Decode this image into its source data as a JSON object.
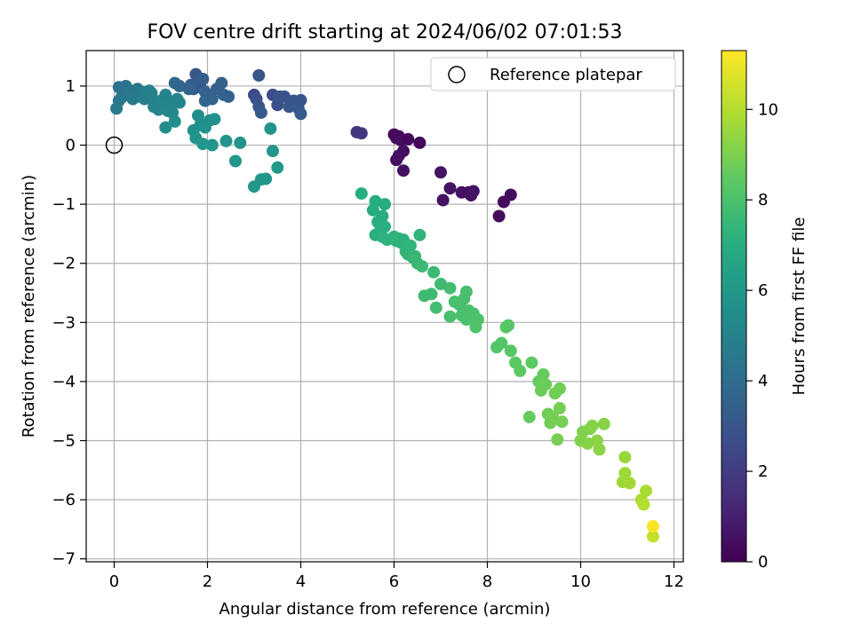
{
  "chart_data": {
    "type": "scatter",
    "title": "FOV centre drift starting at 2024/06/02 07:01:53",
    "xlabel": "Angular distance from reference (arcmin)",
    "ylabel": "Rotation from reference (arcmin)",
    "xlim": [
      -0.6,
      12.2
    ],
    "ylim": [
      -7.05,
      1.6
    ],
    "xticks": [
      "0",
      "2",
      "4",
      "6",
      "8",
      "10",
      "12"
    ],
    "yticks": [
      "1",
      "0",
      "−1",
      "−2",
      "−3",
      "−4",
      "−5",
      "−6",
      "−7"
    ],
    "grid": true,
    "legend": {
      "placement": "top-right",
      "entries": [
        "Reference platepar"
      ]
    },
    "reference_point": {
      "x": 0,
      "y": 0
    },
    "colorbar": {
      "label": "Hours from first FF file",
      "colormap": "viridis",
      "range": [
        0,
        11.3
      ],
      "ticks": [
        "0",
        "2",
        "4",
        "6",
        "8",
        "10"
      ]
    },
    "series": [
      {
        "points": [
          {
            "x": 6.0,
            "y": 0.18,
            "c": 0.2
          },
          {
            "x": 6.05,
            "y": 0.12,
            "c": 0.3
          },
          {
            "x": 6.1,
            "y": 0.15,
            "c": 0.2
          },
          {
            "x": 6.15,
            "y": 0.08,
            "c": 0.4
          },
          {
            "x": 6.3,
            "y": 0.1,
            "c": 0.3
          },
          {
            "x": 6.55,
            "y": 0.04,
            "c": 0.2
          },
          {
            "x": 6.05,
            "y": -0.25,
            "c": 0.4
          },
          {
            "x": 6.1,
            "y": -0.18,
            "c": 0.5
          },
          {
            "x": 6.2,
            "y": -0.1,
            "c": 0.4
          },
          {
            "x": 6.2,
            "y": -0.43,
            "c": 0.5
          },
          {
            "x": 7.0,
            "y": -0.46,
            "c": 0.6
          },
          {
            "x": 7.05,
            "y": -0.93,
            "c": 0.5
          },
          {
            "x": 7.2,
            "y": -0.73,
            "c": 0.6
          },
          {
            "x": 7.45,
            "y": -0.8,
            "c": 0.5
          },
          {
            "x": 7.6,
            "y": -0.8,
            "c": 0.4
          },
          {
            "x": 7.65,
            "y": -0.85,
            "c": 0.5
          },
          {
            "x": 7.7,
            "y": -0.78,
            "c": 0.6
          },
          {
            "x": 8.25,
            "y": -1.2,
            "c": 0.3
          },
          {
            "x": 8.35,
            "y": -0.96,
            "c": 0.4
          },
          {
            "x": 8.5,
            "y": -0.84,
            "c": 0.4
          },
          {
            "x": 5.2,
            "y": 0.22,
            "c": 1.8
          },
          {
            "x": 5.3,
            "y": 0.2,
            "c": 1.8
          },
          {
            "x": 3.0,
            "y": 0.85,
            "c": 2.5
          },
          {
            "x": 3.05,
            "y": 0.78,
            "c": 2.8
          },
          {
            "x": 3.1,
            "y": 0.65,
            "c": 3.0
          },
          {
            "x": 3.15,
            "y": 0.55,
            "c": 3.2
          },
          {
            "x": 3.1,
            "y": 1.18,
            "c": 3.0
          },
          {
            "x": 3.4,
            "y": 0.85,
            "c": 2.6
          },
          {
            "x": 3.5,
            "y": 0.68,
            "c": 2.8
          },
          {
            "x": 3.55,
            "y": 0.82,
            "c": 2.9
          },
          {
            "x": 3.65,
            "y": 0.82,
            "c": 2.9
          },
          {
            "x": 3.75,
            "y": 0.65,
            "c": 3.0
          },
          {
            "x": 3.85,
            "y": 0.75,
            "c": 3.0
          },
          {
            "x": 3.95,
            "y": 0.62,
            "c": 3.1
          },
          {
            "x": 4.0,
            "y": 0.53,
            "c": 3.3
          },
          {
            "x": 4.0,
            "y": 0.76,
            "c": 3.0
          },
          {
            "x": 1.65,
            "y": 1.02,
            "c": 3.2
          },
          {
            "x": 1.7,
            "y": 0.95,
            "c": 3.3
          },
          {
            "x": 1.75,
            "y": 1.2,
            "c": 3.1
          },
          {
            "x": 1.8,
            "y": 1.05,
            "c": 3.3
          },
          {
            "x": 1.85,
            "y": 0.98,
            "c": 3.2
          },
          {
            "x": 1.9,
            "y": 1.12,
            "c": 3.4
          },
          {
            "x": 1.95,
            "y": 0.9,
            "c": 3.5
          },
          {
            "x": 2.0,
            "y": 0.85,
            "c": 3.5
          },
          {
            "x": 2.1,
            "y": 0.78,
            "c": 3.6
          },
          {
            "x": 2.2,
            "y": 0.95,
            "c": 3.4
          },
          {
            "x": 2.3,
            "y": 1.05,
            "c": 3.5
          },
          {
            "x": 2.35,
            "y": 0.85,
            "c": 3.6
          },
          {
            "x": 2.45,
            "y": 0.82,
            "c": 3.5
          },
          {
            "x": 1.95,
            "y": 0.75,
            "c": 3.7
          },
          {
            "x": 1.4,
            "y": 1.0,
            "c": 3.8
          },
          {
            "x": 1.3,
            "y": 1.05,
            "c": 3.7
          },
          {
            "x": 1.6,
            "y": 0.95,
            "c": 3.6
          },
          {
            "x": 0.1,
            "y": 0.98,
            "c": 4.2
          },
          {
            "x": 0.15,
            "y": 0.8,
            "c": 4.3
          },
          {
            "x": 0.2,
            "y": 0.95,
            "c": 4.4
          },
          {
            "x": 0.25,
            "y": 1.0,
            "c": 4.3
          },
          {
            "x": 0.3,
            "y": 0.85,
            "c": 4.5
          },
          {
            "x": 0.35,
            "y": 0.92,
            "c": 4.5
          },
          {
            "x": 0.4,
            "y": 0.78,
            "c": 4.6
          },
          {
            "x": 0.45,
            "y": 0.88,
            "c": 4.6
          },
          {
            "x": 0.5,
            "y": 0.95,
            "c": 4.4
          },
          {
            "x": 0.55,
            "y": 0.82,
            "c": 4.7
          },
          {
            "x": 0.6,
            "y": 0.9,
            "c": 4.6
          },
          {
            "x": 0.65,
            "y": 0.78,
            "c": 4.8
          },
          {
            "x": 0.7,
            "y": 0.85,
            "c": 4.7
          },
          {
            "x": 0.75,
            "y": 0.92,
            "c": 4.8
          },
          {
            "x": 0.8,
            "y": 0.88,
            "c": 4.9
          },
          {
            "x": 0.85,
            "y": 0.65,
            "c": 5.0
          },
          {
            "x": 0.9,
            "y": 0.72,
            "c": 4.9
          },
          {
            "x": 0.95,
            "y": 0.6,
            "c": 5.1
          },
          {
            "x": 1.0,
            "y": 0.75,
            "c": 5.0
          },
          {
            "x": 1.05,
            "y": 0.65,
            "c": 5.1
          },
          {
            "x": 1.1,
            "y": 0.85,
            "c": 5.0
          },
          {
            "x": 1.15,
            "y": 0.58,
            "c": 5.2
          },
          {
            "x": 1.2,
            "y": 0.72,
            "c": 5.1
          },
          {
            "x": 1.25,
            "y": 0.55,
            "c": 5.3
          },
          {
            "x": 1.35,
            "y": 0.78,
            "c": 5.0
          },
          {
            "x": 1.4,
            "y": 0.72,
            "c": 5.1
          },
          {
            "x": 0.05,
            "y": 0.62,
            "c": 4.6
          },
          {
            "x": 0.1,
            "y": 0.75,
            "c": 4.5
          },
          {
            "x": 1.1,
            "y": 0.3,
            "c": 5.4
          },
          {
            "x": 1.3,
            "y": 0.4,
            "c": 5.5
          },
          {
            "x": 1.7,
            "y": 0.25,
            "c": 5.6
          },
          {
            "x": 1.75,
            "y": 0.12,
            "c": 5.8
          },
          {
            "x": 1.8,
            "y": 0.5,
            "c": 5.5
          },
          {
            "x": 1.85,
            "y": 0.35,
            "c": 5.6
          },
          {
            "x": 1.9,
            "y": 0.02,
            "c": 5.9
          },
          {
            "x": 1.95,
            "y": 0.3,
            "c": 5.7
          },
          {
            "x": 2.05,
            "y": 0.42,
            "c": 5.6
          },
          {
            "x": 2.1,
            "y": 0.0,
            "c": 5.9
          },
          {
            "x": 2.15,
            "y": 0.44,
            "c": 5.7
          },
          {
            "x": 2.4,
            "y": 0.07,
            "c": 5.8
          },
          {
            "x": 2.6,
            "y": -0.27,
            "c": 5.9
          },
          {
            "x": 2.7,
            "y": 0.04,
            "c": 5.8
          },
          {
            "x": 3.0,
            "y": -0.7,
            "c": 6.0
          },
          {
            "x": 3.15,
            "y": -0.58,
            "c": 5.9
          },
          {
            "x": 3.25,
            "y": -0.57,
            "c": 5.9
          },
          {
            "x": 3.35,
            "y": 0.28,
            "c": 5.8
          },
          {
            "x": 3.4,
            "y": -0.1,
            "c": 5.9
          },
          {
            "x": 3.5,
            "y": -0.38,
            "c": 6.0
          },
          {
            "x": 5.3,
            "y": -0.82,
            "c": 7.0
          },
          {
            "x": 5.55,
            "y": -1.1,
            "c": 6.9
          },
          {
            "x": 5.6,
            "y": -0.95,
            "c": 7.0
          },
          {
            "x": 5.6,
            "y": -1.52,
            "c": 7.1
          },
          {
            "x": 5.65,
            "y": -1.3,
            "c": 7.0
          },
          {
            "x": 5.7,
            "y": -1.45,
            "c": 7.1
          },
          {
            "x": 5.75,
            "y": -1.2,
            "c": 6.9
          },
          {
            "x": 5.75,
            "y": -1.55,
            "c": 7.2
          },
          {
            "x": 5.8,
            "y": -1.0,
            "c": 6.9
          },
          {
            "x": 5.8,
            "y": -1.38,
            "c": 7.1
          },
          {
            "x": 5.85,
            "y": -1.6,
            "c": 7.2
          },
          {
            "x": 6.0,
            "y": -1.55,
            "c": 7.2
          },
          {
            "x": 6.05,
            "y": -1.62,
            "c": 7.3
          },
          {
            "x": 6.1,
            "y": -1.58,
            "c": 7.3
          },
          {
            "x": 6.15,
            "y": -1.65,
            "c": 7.3
          },
          {
            "x": 6.2,
            "y": -1.6,
            "c": 7.2
          },
          {
            "x": 6.25,
            "y": -1.8,
            "c": 7.4
          },
          {
            "x": 6.3,
            "y": -1.85,
            "c": 7.4
          },
          {
            "x": 6.35,
            "y": -1.7,
            "c": 7.3
          },
          {
            "x": 6.4,
            "y": -1.9,
            "c": 7.5
          },
          {
            "x": 6.45,
            "y": -1.88,
            "c": 7.5
          },
          {
            "x": 6.5,
            "y": -2.0,
            "c": 7.5
          },
          {
            "x": 6.55,
            "y": -1.52,
            "c": 7.3
          },
          {
            "x": 6.6,
            "y": -2.05,
            "c": 7.6
          },
          {
            "x": 6.65,
            "y": -2.55,
            "c": 7.7
          },
          {
            "x": 6.8,
            "y": -2.52,
            "c": 7.7
          },
          {
            "x": 6.85,
            "y": -2.15,
            "c": 7.6
          },
          {
            "x": 6.9,
            "y": -2.75,
            "c": 7.8
          },
          {
            "x": 7.0,
            "y": -2.35,
            "c": 7.7
          },
          {
            "x": 7.2,
            "y": -2.42,
            "c": 7.8
          },
          {
            "x": 7.2,
            "y": -2.9,
            "c": 7.9
          },
          {
            "x": 7.3,
            "y": -2.65,
            "c": 7.9
          },
          {
            "x": 7.4,
            "y": -2.7,
            "c": 7.9
          },
          {
            "x": 7.45,
            "y": -2.88,
            "c": 8.0
          },
          {
            "x": 7.5,
            "y": -2.6,
            "c": 7.9
          },
          {
            "x": 7.55,
            "y": -2.95,
            "c": 8.0
          },
          {
            "x": 7.55,
            "y": -2.48,
            "c": 7.9
          },
          {
            "x": 7.6,
            "y": -2.8,
            "c": 8.0
          },
          {
            "x": 7.65,
            "y": -2.92,
            "c": 8.0
          },
          {
            "x": 7.7,
            "y": -2.85,
            "c": 8.0
          },
          {
            "x": 7.75,
            "y": -3.08,
            "c": 8.1
          },
          {
            "x": 7.8,
            "y": -2.95,
            "c": 8.1
          },
          {
            "x": 8.2,
            "y": -3.42,
            "c": 8.2
          },
          {
            "x": 8.3,
            "y": -3.35,
            "c": 8.2
          },
          {
            "x": 8.4,
            "y": -3.08,
            "c": 8.3
          },
          {
            "x": 8.45,
            "y": -3.05,
            "c": 8.3
          },
          {
            "x": 8.5,
            "y": -3.48,
            "c": 8.3
          },
          {
            "x": 8.6,
            "y": -3.68,
            "c": 8.4
          },
          {
            "x": 8.7,
            "y": -3.82,
            "c": 8.4
          },
          {
            "x": 8.9,
            "y": -4.6,
            "c": 8.6
          },
          {
            "x": 8.95,
            "y": -3.68,
            "c": 8.5
          },
          {
            "x": 9.1,
            "y": -4.0,
            "c": 8.6
          },
          {
            "x": 9.15,
            "y": -4.15,
            "c": 8.7
          },
          {
            "x": 9.2,
            "y": -3.88,
            "c": 8.6
          },
          {
            "x": 9.25,
            "y": -4.05,
            "c": 8.7
          },
          {
            "x": 9.3,
            "y": -4.55,
            "c": 8.8
          },
          {
            "x": 9.35,
            "y": -4.7,
            "c": 8.8
          },
          {
            "x": 9.4,
            "y": -4.6,
            "c": 8.9
          },
          {
            "x": 9.45,
            "y": -4.2,
            "c": 8.8
          },
          {
            "x": 9.5,
            "y": -4.98,
            "c": 8.9
          },
          {
            "x": 9.55,
            "y": -4.12,
            "c": 8.8
          },
          {
            "x": 9.55,
            "y": -4.45,
            "c": 8.9
          },
          {
            "x": 9.6,
            "y": -4.68,
            "c": 8.9
          },
          {
            "x": 10.0,
            "y": -5.0,
            "c": 9.1
          },
          {
            "x": 10.05,
            "y": -4.85,
            "c": 9.1
          },
          {
            "x": 10.15,
            "y": -5.05,
            "c": 9.2
          },
          {
            "x": 10.2,
            "y": -4.8,
            "c": 9.1
          },
          {
            "x": 10.25,
            "y": -4.75,
            "c": 9.2
          },
          {
            "x": 10.35,
            "y": -5.0,
            "c": 9.3
          },
          {
            "x": 10.4,
            "y": -5.15,
            "c": 9.3
          },
          {
            "x": 10.5,
            "y": -4.72,
            "c": 9.2
          },
          {
            "x": 10.9,
            "y": -5.7,
            "c": 9.6
          },
          {
            "x": 10.95,
            "y": -5.55,
            "c": 9.6
          },
          {
            "x": 10.95,
            "y": -5.28,
            "c": 9.5
          },
          {
            "x": 11.05,
            "y": -5.72,
            "c": 9.7
          },
          {
            "x": 11.3,
            "y": -6.0,
            "c": 9.9
          },
          {
            "x": 11.35,
            "y": -6.08,
            "c": 10.0
          },
          {
            "x": 11.4,
            "y": -5.85,
            "c": 9.8
          },
          {
            "x": 11.55,
            "y": -6.62,
            "c": 10.3
          },
          {
            "x": 11.55,
            "y": -6.45,
            "c": 11.2
          }
        ]
      }
    ]
  }
}
